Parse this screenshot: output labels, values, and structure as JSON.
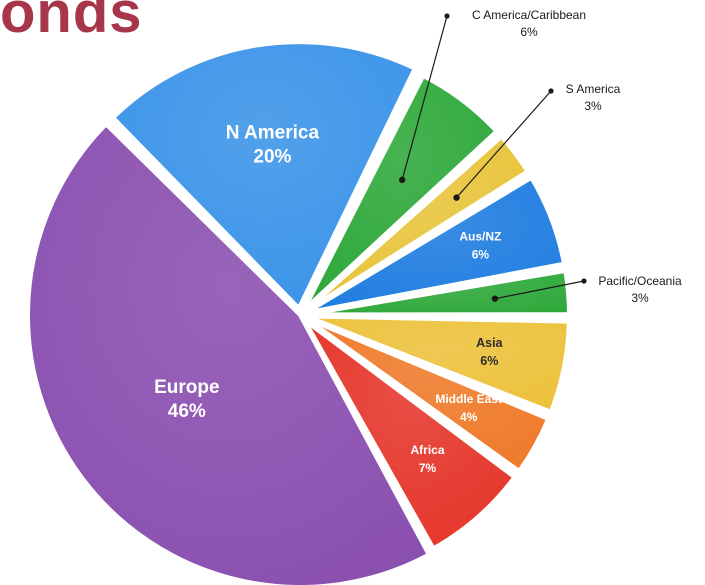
{
  "header": {
    "title_fragment": "onds"
  },
  "chart_data": {
    "type": "pie",
    "start_angle_deg": -63.6,
    "slices": [
      {
        "label": "C America/Caribbean",
        "pct_label": "6%",
        "value": 6,
        "color": "#2ea83a",
        "label_style": "callout",
        "gap": 1
      },
      {
        "label": "S America",
        "pct_label": "3%",
        "value": 3,
        "color": "#e8c43a",
        "label_style": "callout",
        "gap": 1
      },
      {
        "label": "Aus/NZ",
        "pct_label": "6%",
        "value": 6,
        "color": "#1f7de0",
        "label_style": "inside-small",
        "gap": 1
      },
      {
        "label": "Pacific/Oceania",
        "pct_label": "3%",
        "value": 3,
        "color": "#2ea83a",
        "label_style": "callout",
        "gap": 1
      },
      {
        "label": "Asia",
        "pct_label": "6%",
        "value": 6,
        "color": "#ecc13b",
        "label_style": "inside-dark",
        "gap": 1
      },
      {
        "label": "Middle East",
        "pct_label": "4%",
        "value": 4,
        "color": "#ef7a2a",
        "label_style": "inside-small",
        "gap": 1
      },
      {
        "label": "Africa",
        "pct_label": "7%",
        "value": 7,
        "color": "#e5352a",
        "label_style": "inside-small",
        "gap": 1
      },
      {
        "label": "Europe",
        "pct_label": "46%",
        "value": 46,
        "color": "#8a4fb0",
        "label_style": "inside-large",
        "gap": 0
      },
      {
        "label": "N America",
        "pct_label": "20%",
        "value": 20,
        "color": "#3a93e8",
        "label_style": "inside-large",
        "gap": 1
      }
    ]
  }
}
